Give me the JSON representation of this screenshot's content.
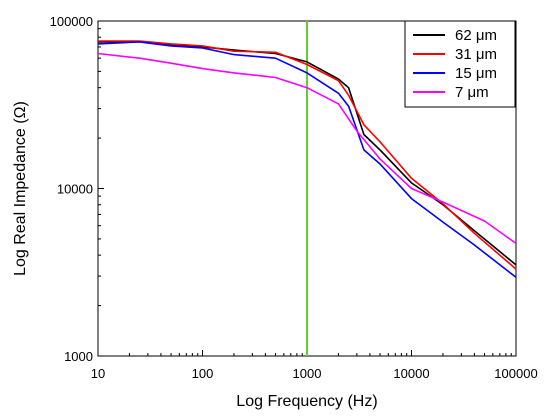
{
  "chart_data": {
    "type": "line",
    "title": "",
    "xlabel": "Log Frequency (Hz)",
    "ylabel": "Log Real Impedance (Ω)",
    "x_scale": "log",
    "y_scale": "log",
    "xlim": [
      10,
      100000
    ],
    "ylim": [
      1000,
      100000
    ],
    "x_ticks": [
      10,
      100,
      1000,
      10000,
      100000
    ],
    "x_tick_labels": [
      "10",
      "100",
      "1000",
      "10000",
      "100000"
    ],
    "y_ticks": [
      1000,
      10000,
      100000
    ],
    "y_tick_labels": [
      "1000",
      "10000",
      "100000"
    ],
    "grid": false,
    "legend_position": "top-right",
    "vertical_line": {
      "x": 1000,
      "color": "#66cc33"
    },
    "series": [
      {
        "name": "62 μm",
        "color": "#000000",
        "points": [
          [
            10,
            75000
          ],
          [
            25,
            75500
          ],
          [
            50,
            72000
          ],
          [
            100,
            70000
          ],
          [
            200,
            67000
          ],
          [
            500,
            64000
          ],
          [
            1000,
            57000
          ],
          [
            2000,
            45000
          ],
          [
            2500,
            40000
          ],
          [
            3500,
            21000
          ],
          [
            5000,
            17000
          ],
          [
            10000,
            10800
          ],
          [
            20000,
            8000
          ],
          [
            40000,
            5600
          ],
          [
            100000,
            3500
          ]
        ]
      },
      {
        "name": "31 μm",
        "color": "#ff0000",
        "points": [
          [
            10,
            76000
          ],
          [
            25,
            76000
          ],
          [
            50,
            73000
          ],
          [
            100,
            71000
          ],
          [
            200,
            66000
          ],
          [
            500,
            65000
          ],
          [
            1000,
            55000
          ],
          [
            2000,
            44000
          ],
          [
            2500,
            36000
          ],
          [
            3500,
            24000
          ],
          [
            5000,
            19000
          ],
          [
            10000,
            11500
          ],
          [
            20000,
            8100
          ],
          [
            40000,
            5400
          ],
          [
            100000,
            3300
          ]
        ]
      },
      {
        "name": "15 μm",
        "color": "#0000ff",
        "points": [
          [
            10,
            73000
          ],
          [
            25,
            75000
          ],
          [
            50,
            71000
          ],
          [
            100,
            69000
          ],
          [
            200,
            63000
          ],
          [
            500,
            60000
          ],
          [
            1000,
            49000
          ],
          [
            2000,
            37000
          ],
          [
            2500,
            31000
          ],
          [
            3500,
            17000
          ],
          [
            5000,
            14000
          ],
          [
            10000,
            8700
          ],
          [
            20000,
            6300
          ],
          [
            40000,
            4600
          ],
          [
            100000,
            2950
          ]
        ]
      },
      {
        "name": "7 μm",
        "color": "#ff00ff",
        "points": [
          [
            10,
            64000
          ],
          [
            25,
            60000
          ],
          [
            50,
            56000
          ],
          [
            100,
            52000
          ],
          [
            200,
            49000
          ],
          [
            500,
            46000
          ],
          [
            1000,
            40000
          ],
          [
            2000,
            32000
          ],
          [
            3000,
            22000
          ],
          [
            5000,
            15000
          ],
          [
            10000,
            10000
          ],
          [
            20000,
            8300
          ],
          [
            50000,
            6400
          ],
          [
            100000,
            4700
          ]
        ]
      }
    ]
  }
}
